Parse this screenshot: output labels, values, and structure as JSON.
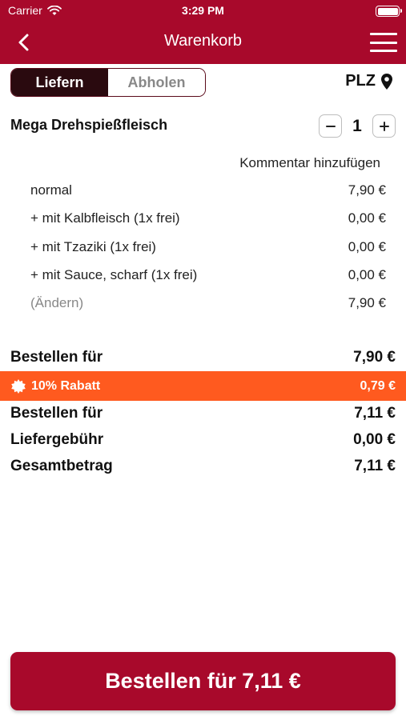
{
  "status_bar": {
    "carrier": "Carrier",
    "time": "3:29 PM"
  },
  "header": {
    "title": "Warenkorb",
    "background": "#a8092b"
  },
  "delivery_toggle": {
    "options": [
      "Liefern",
      "Abholen"
    ],
    "selected": "Liefern"
  },
  "plz": {
    "label": "PLZ"
  },
  "cart_item": {
    "name": "Mega Drehspießfleisch",
    "quantity": "1",
    "comment_link": "Kommentar hinzufügen",
    "details": [
      {
        "label": "normal",
        "price": "7,90 €"
      },
      {
        "label": "+ mit Kalbfleisch (1x frei)",
        "price": "0,00 €"
      },
      {
        "label": "+ mit Tzaziki (1x frei)",
        "price": "0,00 €"
      },
      {
        "label": "+ mit Sauce, scharf (1x frei)",
        "price": "0,00 €"
      },
      {
        "label": "(Ändern)",
        "price": "7,90 €"
      }
    ]
  },
  "summary": {
    "subtotal": {
      "label": "Bestellen für",
      "value": "7,90 €"
    },
    "discount": {
      "label": "10% Rabatt",
      "value": "0,79 €",
      "color": "#ff5a1f"
    },
    "after_discount": {
      "label": "Bestellen für",
      "value": "7,11 €"
    },
    "delivery_fee": {
      "label": "Liefergebühr",
      "value": "0,00 €"
    },
    "total": {
      "label": "Gesamtbetrag",
      "value": "7,11 €"
    }
  },
  "order_button": {
    "label": "Bestellen für 7,11 €"
  }
}
